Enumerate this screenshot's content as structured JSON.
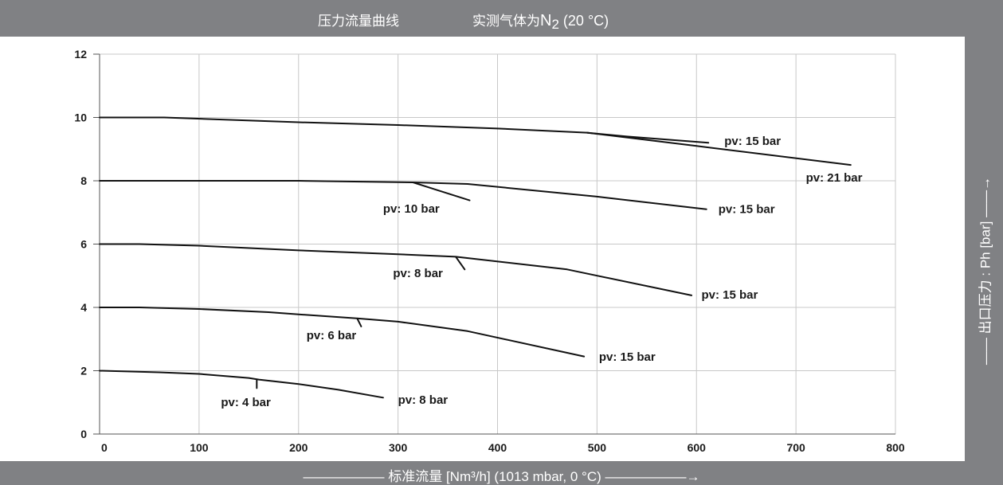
{
  "header": {
    "title_main": "压力流量曲线",
    "title_gas_prefix": "实测气体为",
    "title_gas_formula": "N",
    "title_gas_subscript": "2",
    "title_gas_temp": " (20 °C)"
  },
  "colors": {
    "bar": "#808184",
    "grid": "#c8c8c8",
    "line": "#111111",
    "text_on_bar": "#ffffff"
  },
  "chart_data": {
    "type": "line",
    "title": "压力流量曲线   实测气体为N₂ (20 °C)",
    "xlabel": "标准流量 [Nm³/h] (1013 mbar, 0 °C)",
    "ylabel": "出口压力 : Ph [bar]",
    "xlim": [
      0,
      800
    ],
    "ylim": [
      0,
      12
    ],
    "x_ticks": [
      "0",
      "100",
      "200",
      "300",
      "400",
      "500",
      "600",
      "700",
      "800"
    ],
    "y_ticks": [
      "0",
      "2",
      "4",
      "6",
      "8",
      "10",
      "12"
    ],
    "grid": true,
    "series": [
      {
        "name": "pv: 21 bar",
        "x": [
          0,
          65,
          200,
          300,
          400,
          490,
          600,
          755
        ],
        "y": [
          10.0,
          10.0,
          9.85,
          9.76,
          9.65,
          9.52,
          9.1,
          8.5
        ]
      },
      {
        "name": "pv: 15 bar",
        "x": [
          490,
          530,
          612
        ],
        "y": [
          9.52,
          9.4,
          9.2
        ]
      },
      {
        "name": "pv: 15 bar",
        "x": [
          0,
          200,
          315,
          370,
          500,
          610
        ],
        "y": [
          8.0,
          8.0,
          7.95,
          7.9,
          7.5,
          7.1
        ]
      },
      {
        "name": "pv: 10 bar",
        "x": [
          315,
          340,
          372
        ],
        "y": [
          7.95,
          7.7,
          7.38
        ]
      },
      {
        "name": "pv: 15 bar",
        "x": [
          0,
          40,
          100,
          200,
          300,
          358,
          470,
          595
        ],
        "y": [
          6.0,
          6.0,
          5.95,
          5.8,
          5.68,
          5.6,
          5.2,
          4.38
        ]
      },
      {
        "name": "pv: 8 bar",
        "x": [
          358,
          367
        ],
        "y": [
          5.6,
          5.2
        ]
      },
      {
        "name": "pv: 15 bar",
        "x": [
          0,
          40,
          100,
          170,
          200,
          260,
          300,
          370,
          487
        ],
        "y": [
          4.0,
          4.0,
          3.95,
          3.85,
          3.78,
          3.65,
          3.55,
          3.25,
          2.45
        ]
      },
      {
        "name": "pv: 6 bar",
        "x": [
          259,
          263
        ],
        "y": [
          3.65,
          3.4
        ]
      },
      {
        "name": "pv: 8 bar",
        "x": [
          0,
          60,
          100,
          150,
          160,
          200,
          240,
          285
        ],
        "y": [
          2.0,
          1.95,
          1.9,
          1.77,
          1.72,
          1.58,
          1.4,
          1.15
        ]
      },
      {
        "name": "pv: 4 bar",
        "x": [
          158,
          158
        ],
        "y": [
          1.72,
          1.45
        ]
      }
    ],
    "annotations": [
      {
        "text": "pv: 15 bar",
        "x": 628,
        "y": 9.13
      },
      {
        "text": "pv: 21 bar",
        "x": 710,
        "y": 7.98
      },
      {
        "text": "pv: 10 bar",
        "x": 285,
        "y": 7.0
      },
      {
        "text": "pv: 15 bar",
        "x": 622,
        "y": 6.98
      },
      {
        "text": "pv: 8 bar",
        "x": 295,
        "y": 4.96
      },
      {
        "text": "pv: 15 bar",
        "x": 605,
        "y": 4.28
      },
      {
        "text": "pv: 6 bar",
        "x": 208,
        "y": 3.0
      },
      {
        "text": "pv: 15 bar",
        "x": 502,
        "y": 2.32
      },
      {
        "text": "pv: 4 bar",
        "x": 122,
        "y": 0.88
      },
      {
        "text": "pv: 8 bar",
        "x": 300,
        "y": 0.96
      }
    ]
  }
}
